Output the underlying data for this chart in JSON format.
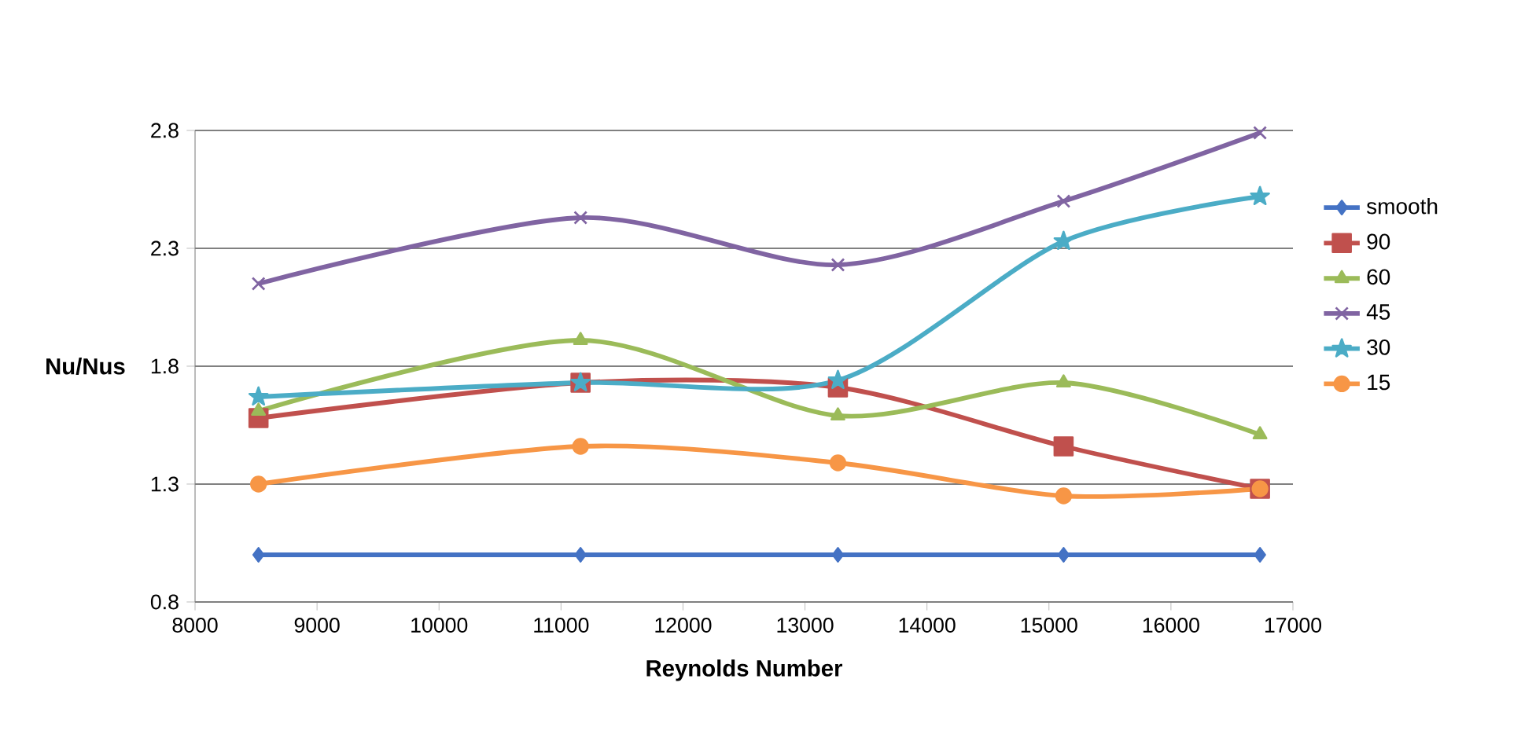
{
  "chart_data": {
    "type": "line",
    "xlabel": "Reynolds Number",
    "ylabel": "Nu/Nus",
    "xlim": [
      8000,
      17000
    ],
    "xticks": [
      8000,
      9000,
      10000,
      11000,
      12000,
      13000,
      14000,
      15000,
      16000,
      17000
    ],
    "ylim": [
      0.8,
      2.8
    ],
    "yticks": [
      0.8,
      1.3,
      1.8,
      2.3,
      2.8
    ],
    "grid": "y",
    "legend": "right",
    "x": [
      8520,
      11160,
      13270,
      15120,
      16730
    ],
    "series": [
      {
        "name": "smooth",
        "color": "#4472c4",
        "marker": "diamond",
        "values": [
          1.0,
          1.0,
          1.0,
          1.0,
          1.0
        ]
      },
      {
        "name": "90",
        "color": "#c0504d",
        "marker": "square",
        "values": [
          1.58,
          1.73,
          1.71,
          1.46,
          1.28
        ]
      },
      {
        "name": "60",
        "color": "#9bbb59",
        "marker": "triangle",
        "values": [
          1.61,
          1.91,
          1.59,
          1.73,
          1.51
        ]
      },
      {
        "name": "45",
        "color": "#8064a2",
        "marker": "cross",
        "values": [
          2.15,
          2.43,
          2.23,
          2.5,
          2.79
        ]
      },
      {
        "name": "30",
        "color": "#4bacc6",
        "marker": "star",
        "values": [
          1.67,
          1.73,
          1.74,
          2.33,
          2.52
        ]
      },
      {
        "name": "15",
        "color": "#f79646",
        "marker": "circle",
        "values": [
          1.3,
          1.46,
          1.39,
          1.25,
          1.28
        ]
      }
    ]
  }
}
